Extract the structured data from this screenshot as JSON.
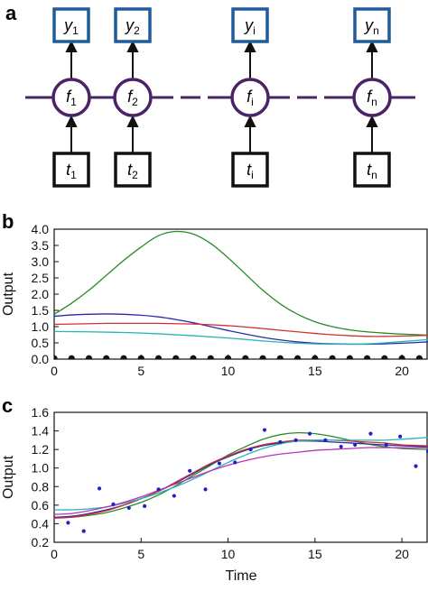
{
  "panels": {
    "a": {
      "letter": "a",
      "outputs": [
        {
          "sym": "y",
          "sub": "1"
        },
        {
          "sym": "y",
          "sub": "2"
        },
        {
          "sym": "y",
          "sub": "i"
        },
        {
          "sym": "y",
          "sub": "n"
        }
      ],
      "cells": [
        {
          "sym": "f",
          "sub": "1"
        },
        {
          "sym": "f",
          "sub": "2"
        },
        {
          "sym": "f",
          "sub": "i"
        },
        {
          "sym": "f",
          "sub": "n"
        }
      ],
      "inputs": [
        {
          "sym": "t",
          "sub": "1"
        },
        {
          "sym": "t",
          "sub": "2"
        },
        {
          "sym": "t",
          "sub": "i"
        },
        {
          "sym": "t",
          "sub": "n"
        }
      ],
      "colors": {
        "output_box": "#1f5c99",
        "cell": "#4b2366",
        "input_box": "#111111"
      }
    },
    "b": {
      "letter": "b"
    },
    "c": {
      "letter": "c"
    }
  },
  "chart_data": [
    {
      "panel": "b",
      "type": "line",
      "title": "",
      "xlabel": "",
      "ylabel": "Output",
      "xlim": [
        0,
        21.5
      ],
      "ylim": [
        0,
        4.0
      ],
      "xticks": [
        "0",
        "5",
        "10",
        "15",
        "20"
      ],
      "yticks": [
        "0.0",
        "0.5",
        "1.0",
        "1.5",
        "2.0",
        "2.5",
        "3.0",
        "3.5",
        "4.0"
      ],
      "grid": false,
      "series": [
        {
          "color": "#2a8a2a",
          "x": [
            0,
            1,
            2,
            3,
            4,
            5,
            6,
            7,
            8,
            9,
            10,
            11,
            12,
            13,
            14,
            15,
            16,
            17,
            18,
            19,
            20,
            21.5
          ],
          "values": [
            1.38,
            1.72,
            2.12,
            2.58,
            3.04,
            3.45,
            3.8,
            3.93,
            3.85,
            3.56,
            3.12,
            2.62,
            2.12,
            1.7,
            1.38,
            1.15,
            1.0,
            0.9,
            0.84,
            0.8,
            0.77,
            0.74
          ]
        },
        {
          "color": "#2a2aaa",
          "x": [
            0,
            1,
            2,
            3,
            4,
            5,
            6,
            7,
            8,
            9,
            10,
            11,
            12,
            13,
            14,
            15,
            16,
            17,
            18,
            19,
            20,
            21.5
          ],
          "values": [
            1.32,
            1.36,
            1.38,
            1.39,
            1.38,
            1.35,
            1.3,
            1.22,
            1.12,
            1.0,
            0.88,
            0.77,
            0.67,
            0.59,
            0.53,
            0.49,
            0.47,
            0.46,
            0.46,
            0.47,
            0.49,
            0.53
          ]
        },
        {
          "color": "#cc3333",
          "x": [
            0,
            1,
            2,
            3,
            4,
            5,
            6,
            7,
            8,
            9,
            10,
            11,
            12,
            13,
            14,
            15,
            16,
            17,
            18,
            19,
            20,
            21.5
          ],
          "values": [
            1.07,
            1.08,
            1.09,
            1.1,
            1.1,
            1.1,
            1.1,
            1.09,
            1.08,
            1.06,
            1.03,
            0.99,
            0.94,
            0.89,
            0.84,
            0.79,
            0.75,
            0.72,
            0.7,
            0.7,
            0.71,
            0.73
          ]
        },
        {
          "color": "#29b3b3",
          "x": [
            0,
            2,
            4,
            6,
            8,
            10,
            12,
            13,
            14,
            15,
            16,
            17,
            18,
            19,
            20,
            21.5
          ],
          "values": [
            0.85,
            0.84,
            0.82,
            0.78,
            0.72,
            0.65,
            0.56,
            0.52,
            0.49,
            0.47,
            0.46,
            0.46,
            0.47,
            0.5,
            0.54,
            0.6
          ]
        }
      ],
      "scatter": {
        "color": "#111111",
        "x": [
          0,
          1,
          2,
          3,
          4,
          5,
          6,
          7,
          8,
          9,
          10,
          11,
          12,
          13,
          14,
          15,
          16,
          17,
          18,
          19,
          20,
          21
        ],
        "values": [
          0.02,
          0.02,
          0.02,
          0.02,
          0.02,
          0.02,
          0.02,
          0.02,
          0.02,
          0.02,
          0.02,
          0.02,
          0.02,
          0.02,
          0.02,
          0.02,
          0.02,
          0.02,
          0.02,
          0.02,
          0.02,
          0.02
        ]
      }
    },
    {
      "panel": "c",
      "type": "line",
      "title": "",
      "xlabel": "Time",
      "ylabel": "Output",
      "xlim": [
        0,
        21.5
      ],
      "ylim": [
        0.2,
        1.6
      ],
      "xticks": [
        "0",
        "5",
        "10",
        "15",
        "20"
      ],
      "yticks": [
        "0.2",
        "0.4",
        "0.6",
        "0.8",
        "1.0",
        "1.2",
        "1.4",
        "1.6"
      ],
      "grid": false,
      "series": [
        {
          "color": "#2a8a2a",
          "x": [
            0,
            1,
            2,
            3,
            4,
            5,
            6,
            7,
            8,
            9,
            10,
            11,
            12,
            13,
            14,
            15,
            16,
            17,
            18,
            19,
            20,
            21.5
          ],
          "values": [
            0.47,
            0.47,
            0.49,
            0.52,
            0.57,
            0.63,
            0.71,
            0.81,
            0.92,
            1.03,
            1.14,
            1.23,
            1.31,
            1.36,
            1.38,
            1.37,
            1.34,
            1.3,
            1.26,
            1.23,
            1.21,
            1.2
          ]
        },
        {
          "color": "#2a2aaa",
          "x": [
            0,
            1,
            2,
            3,
            4,
            5,
            6,
            7,
            8,
            9,
            10,
            11,
            12,
            13,
            14,
            15,
            16,
            17,
            18,
            19,
            20,
            21.5
          ],
          "values": [
            0.47,
            0.48,
            0.51,
            0.55,
            0.6,
            0.67,
            0.75,
            0.84,
            0.94,
            1.04,
            1.12,
            1.19,
            1.24,
            1.27,
            1.29,
            1.29,
            1.28,
            1.27,
            1.26,
            1.25,
            1.24,
            1.23
          ]
        },
        {
          "color": "#cc3333",
          "x": [
            0,
            1,
            2,
            3,
            4,
            5,
            6,
            7,
            8,
            9,
            10,
            11,
            12,
            13,
            14,
            15,
            16,
            17,
            18,
            19,
            20,
            21.5
          ],
          "values": [
            0.46,
            0.47,
            0.5,
            0.54,
            0.6,
            0.67,
            0.75,
            0.85,
            0.95,
            1.05,
            1.13,
            1.2,
            1.25,
            1.28,
            1.3,
            1.3,
            1.3,
            1.29,
            1.28,
            1.27,
            1.25,
            1.24
          ]
        },
        {
          "color": "#29b3b3",
          "x": [
            0,
            1,
            2,
            3,
            4,
            5,
            6,
            7,
            8,
            9,
            10,
            11,
            12,
            13,
            14,
            15,
            16,
            17,
            18,
            19,
            20,
            21.5
          ],
          "values": [
            0.55,
            0.55,
            0.56,
            0.58,
            0.62,
            0.67,
            0.73,
            0.8,
            0.88,
            0.97,
            1.06,
            1.14,
            1.21,
            1.26,
            1.29,
            1.3,
            1.3,
            1.3,
            1.3,
            1.3,
            1.31,
            1.33
          ]
        },
        {
          "color": "#bb33bb",
          "x": [
            0,
            1,
            2,
            3,
            4,
            5,
            6,
            7,
            8,
            9,
            10,
            11,
            12,
            13,
            14,
            15,
            16,
            17,
            18,
            19,
            20,
            21.5
          ],
          "values": [
            0.5,
            0.51,
            0.54,
            0.58,
            0.63,
            0.69,
            0.76,
            0.83,
            0.9,
            0.97,
            1.03,
            1.08,
            1.12,
            1.15,
            1.17,
            1.19,
            1.2,
            1.21,
            1.22,
            1.22,
            1.22,
            1.22
          ]
        }
      ],
      "scatter": {
        "color": "#1e22cc",
        "x": [
          0.8,
          1.7,
          2.6,
          3.4,
          4.3,
          5.2,
          6.0,
          6.9,
          7.8,
          8.7,
          9.5,
          10.4,
          11.3,
          12.1,
          13.0,
          13.9,
          14.7,
          15.6,
          16.5,
          17.3,
          18.2,
          19.1,
          19.9,
          20.8,
          21.5
        ],
        "values": [
          0.41,
          0.32,
          0.78,
          0.61,
          0.57,
          0.59,
          0.77,
          0.7,
          0.97,
          0.77,
          1.05,
          1.06,
          1.2,
          1.41,
          1.28,
          1.3,
          1.37,
          1.3,
          1.23,
          1.25,
          1.37,
          1.25,
          1.34,
          1.02,
          1.18
        ]
      }
    }
  ]
}
